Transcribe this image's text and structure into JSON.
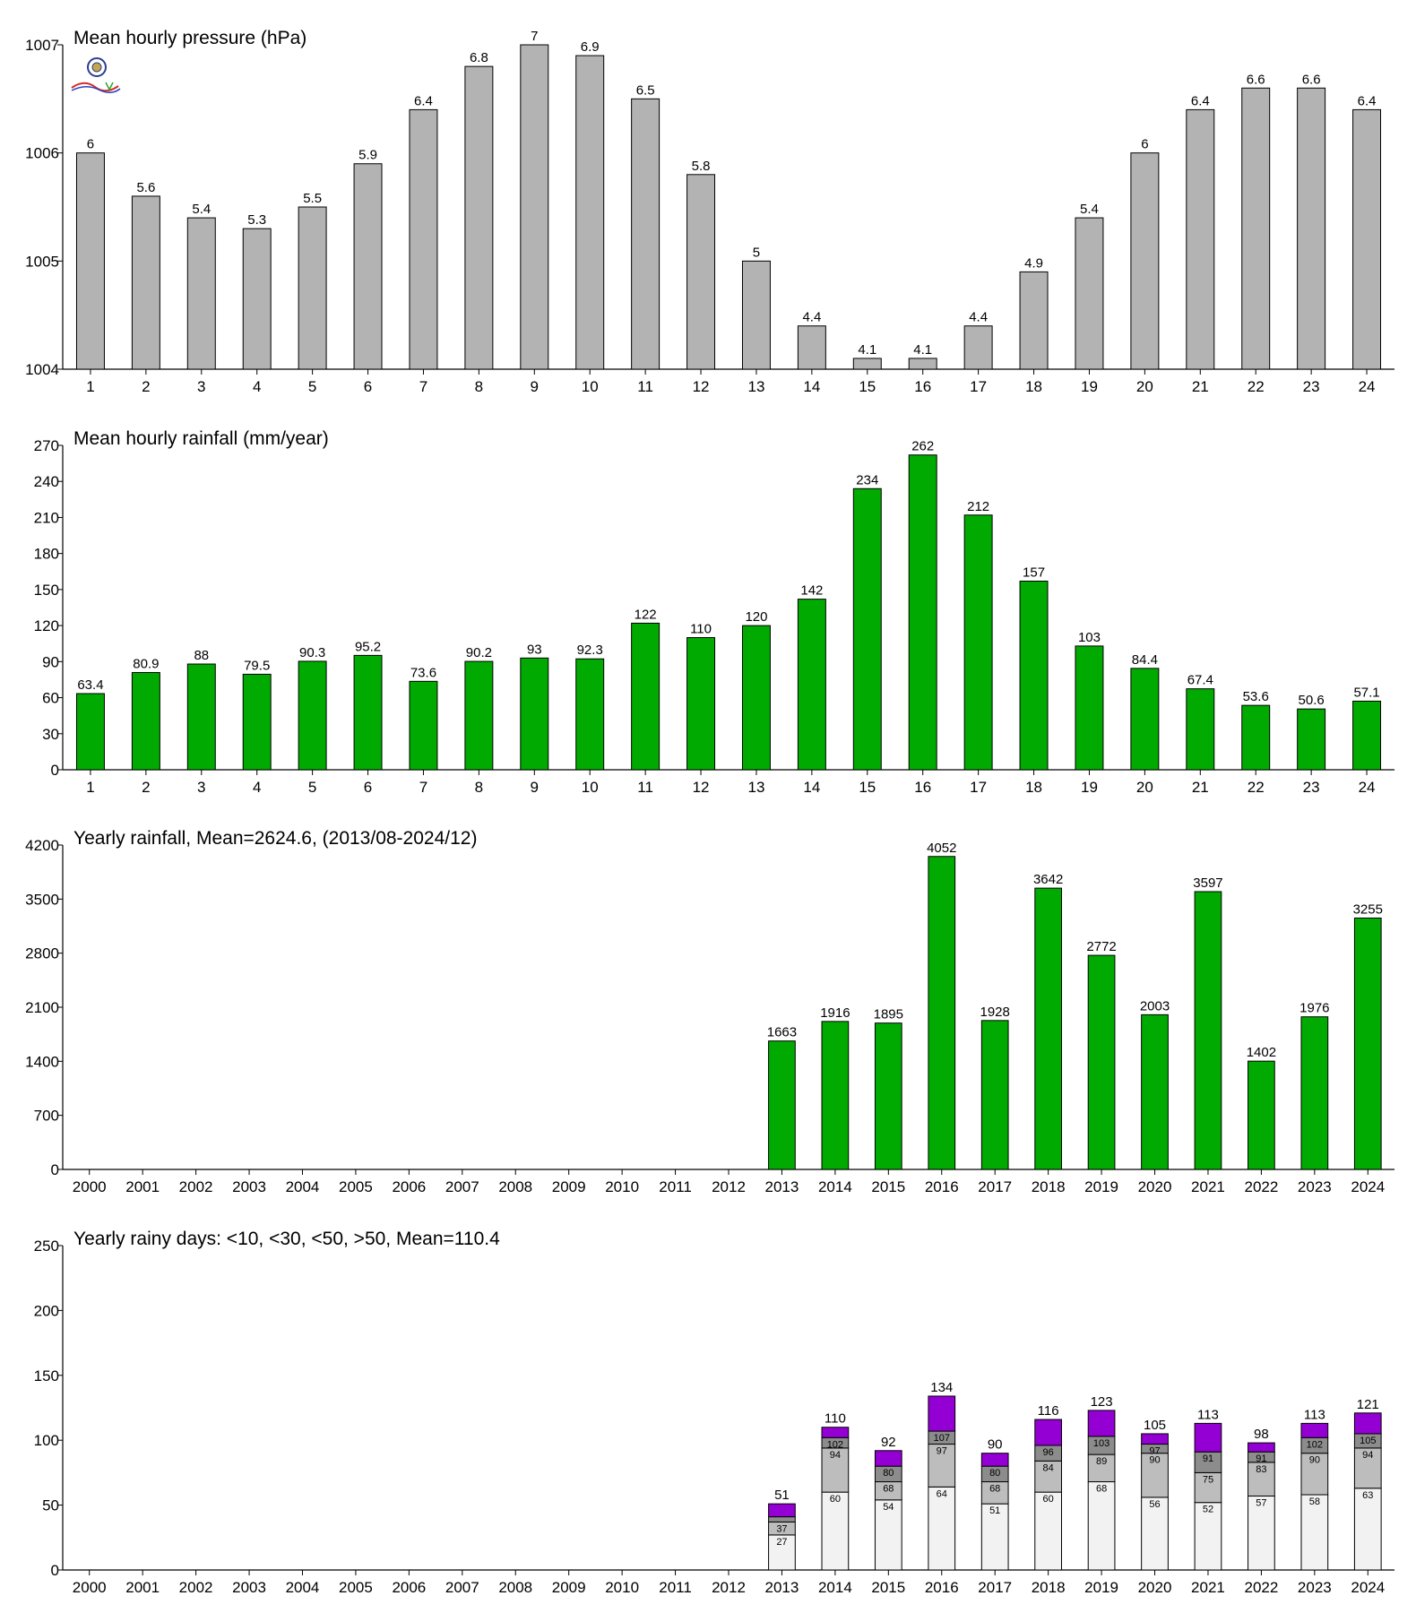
{
  "chart_data": [
    {
      "type": "bar",
      "title": "Mean hourly pressure (hPa)",
      "ylim": [
        1004,
        1007
      ],
      "yticks": [
        1004,
        1005,
        1006,
        1007
      ],
      "categories": [
        "1",
        "2",
        "3",
        "4",
        "5",
        "6",
        "7",
        "8",
        "9",
        "10",
        "11",
        "12",
        "13",
        "14",
        "15",
        "16",
        "17",
        "18",
        "19",
        "20",
        "21",
        "22",
        "23",
        "24"
      ],
      "values": [
        1006.0,
        1005.6,
        1005.4,
        1005.3,
        1005.5,
        1005.9,
        1006.4,
        1006.8,
        1007.0,
        1006.9,
        1006.5,
        1005.8,
        1005.0,
        1004.4,
        1004.1,
        1004.1,
        1004.4,
        1004.9,
        1005.4,
        1006.0,
        1006.4,
        1006.6,
        1006.6,
        1006.4
      ],
      "labels": [
        "6",
        "5.6",
        "5.4",
        "5.3",
        "5.5",
        "5.9",
        "6.4",
        "6.8",
        "7",
        "6.9",
        "6.5",
        "5.8",
        "5",
        "4.4",
        "4.1",
        "4.1",
        "4.4",
        "4.9",
        "5.4",
        "6",
        "6.4",
        "6.6",
        "6.6",
        "6.4"
      ],
      "color": "#b3b3b3",
      "logo": "weather-lab-logo"
    },
    {
      "type": "bar",
      "title": "Mean hourly rainfall (mm/year)",
      "ylim": [
        0,
        270
      ],
      "yticks": [
        0,
        30,
        60,
        90,
        120,
        150,
        180,
        210,
        240,
        270
      ],
      "categories": [
        "1",
        "2",
        "3",
        "4",
        "5",
        "6",
        "7",
        "8",
        "9",
        "10",
        "11",
        "12",
        "13",
        "14",
        "15",
        "16",
        "17",
        "18",
        "19",
        "20",
        "21",
        "22",
        "23",
        "24"
      ],
      "values": [
        63.4,
        80.9,
        88,
        79.5,
        90.3,
        95.2,
        73.6,
        90.2,
        93,
        92.3,
        122,
        110,
        120,
        142,
        234,
        262,
        212,
        157,
        103,
        84.4,
        67.4,
        53.6,
        50.6,
        57.1
      ],
      "labels": [
        "63.4",
        "80.9",
        "88",
        "79.5",
        "90.3",
        "95.2",
        "73.6",
        "90.2",
        "93",
        "92.3",
        "122",
        "110",
        "120",
        "142",
        "234",
        "262",
        "212",
        "157",
        "103",
        "84.4",
        "67.4",
        "53.6",
        "50.6",
        "57.1"
      ],
      "color": "#00aa00"
    },
    {
      "type": "bar",
      "title": "Yearly rainfall, Mean=2624.6, (2013/08-2024/12)",
      "ylim": [
        0,
        4200
      ],
      "yticks": [
        0,
        700,
        1400,
        2100,
        2800,
        3500,
        4200
      ],
      "categories": [
        "2000",
        "2001",
        "2002",
        "2003",
        "2004",
        "2005",
        "2006",
        "2007",
        "2008",
        "2009",
        "2010",
        "2011",
        "2012",
        "2013",
        "2014",
        "2015",
        "2016",
        "2017",
        "2018",
        "2019",
        "2020",
        "2021",
        "2022",
        "2023",
        "2024"
      ],
      "values": [
        null,
        null,
        null,
        null,
        null,
        null,
        null,
        null,
        null,
        null,
        null,
        null,
        null,
        1663,
        1916,
        1895,
        4052,
        1928,
        3642,
        2772,
        2003,
        3597,
        1402,
        1976,
        3255
      ],
      "labels": [
        "",
        "",
        "",
        "",
        "",
        "",
        "",
        "",
        "",
        "",
        "",
        "",
        "",
        "1663",
        "1916",
        "1895",
        "4052",
        "1928",
        "3642",
        "2772",
        "2003",
        "3597",
        "1402",
        "1976",
        "3255"
      ],
      "color": "#00aa00"
    },
    {
      "type": "bar",
      "stacked": true,
      "title": "Yearly rainy days: <10, <30, <50, >50, Mean=110.4",
      "ylim": [
        0,
        250
      ],
      "yticks": [
        0,
        50,
        100,
        150,
        200,
        250
      ],
      "categories": [
        "2000",
        "2001",
        "2002",
        "2003",
        "2004",
        "2005",
        "2006",
        "2007",
        "2008",
        "2009",
        "2010",
        "2011",
        "2012",
        "2013",
        "2014",
        "2015",
        "2016",
        "2017",
        "2018",
        "2019",
        "2020",
        "2021",
        "2022",
        "2023",
        "2024"
      ],
      "colors": [
        "#f2f2f2",
        "#bdbdbd",
        "#8c8c8c",
        "#9400d3"
      ],
      "cumulative": [
        null,
        null,
        null,
        null,
        null,
        null,
        null,
        null,
        null,
        null,
        null,
        null,
        null,
        [
          27,
          37,
          41,
          51
        ],
        [
          60,
          94,
          102,
          110
        ],
        [
          54,
          68,
          80,
          92
        ],
        [
          64,
          97,
          107,
          134
        ],
        [
          51,
          68,
          80,
          90
        ],
        [
          60,
          84,
          96,
          116
        ],
        [
          68,
          89,
          103,
          123
        ],
        [
          56,
          90,
          97,
          105
        ],
        [
          52,
          75,
          91,
          113
        ],
        [
          57,
          83,
          91,
          98
        ],
        [
          58,
          90,
          102,
          113
        ],
        [
          63,
          94,
          105,
          121
        ]
      ],
      "inner_labels": [
        null,
        null,
        null,
        null,
        null,
        null,
        null,
        null,
        null,
        null,
        null,
        null,
        null,
        [
          "27",
          "37",
          "",
          ""
        ],
        [
          "60",
          "94",
          "102",
          ""
        ],
        [
          "54",
          "68",
          "80",
          ""
        ],
        [
          "64",
          "97",
          "107",
          ""
        ],
        [
          "51",
          "68",
          "80",
          ""
        ],
        [
          "60",
          "84",
          "96",
          ""
        ],
        [
          "68",
          "89",
          "103",
          ""
        ],
        [
          "56",
          "90",
          "97",
          ""
        ],
        [
          "52",
          "75",
          "91",
          ""
        ],
        [
          "57",
          "83",
          "91",
          ""
        ],
        [
          "58",
          "90",
          "102",
          ""
        ],
        [
          "63",
          "94",
          "105",
          ""
        ]
      ],
      "totals": [
        "",
        "",
        "",
        "",
        "",
        "",
        "",
        "",
        "",
        "",
        "",
        "",
        "",
        "51",
        "110",
        "92",
        "134",
        "90",
        "116",
        "123",
        "105",
        "113",
        "98",
        "113",
        "121"
      ]
    }
  ]
}
